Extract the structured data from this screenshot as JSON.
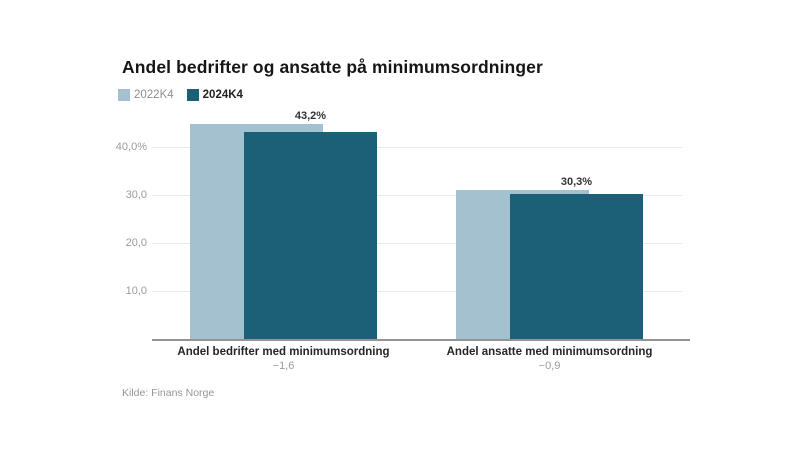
{
  "title": "Andel bedrifter og ansatte på minimumsordninger",
  "legend": {
    "items": [
      {
        "label": "2022K4",
        "color": "#a3c1ce"
      },
      {
        "label": "2024K4",
        "color": "#1c6078"
      }
    ]
  },
  "chart_data": {
    "type": "bar",
    "style": "grouped-overlapping",
    "title": "Andel bedrifter og ansatte på minimumsordninger",
    "categories": [
      "Andel bedrifter med minimumsordning",
      "Andel ansatte med minimumsordning"
    ],
    "series": [
      {
        "name": "2022K4",
        "color": "#a3c1ce",
        "values": [
          44.8,
          31.2
        ]
      },
      {
        "name": "2024K4",
        "color": "#1c6078",
        "values": [
          43.2,
          30.3
        ]
      }
    ],
    "value_labels": [
      "43,2%",
      "30,3%"
    ],
    "difference_labels": [
      "−1,6",
      "−0,9"
    ],
    "yticks": [
      {
        "label": "40,0%",
        "value": 40
      },
      {
        "label": "30,0",
        "value": 30
      },
      {
        "label": "20,0",
        "value": 20
      },
      {
        "label": "10,0",
        "value": 10
      }
    ],
    "ylim": [
      0,
      45
    ],
    "grid": true,
    "legend_position": "top-left"
  },
  "source": "Kilde: Finans Norge"
}
